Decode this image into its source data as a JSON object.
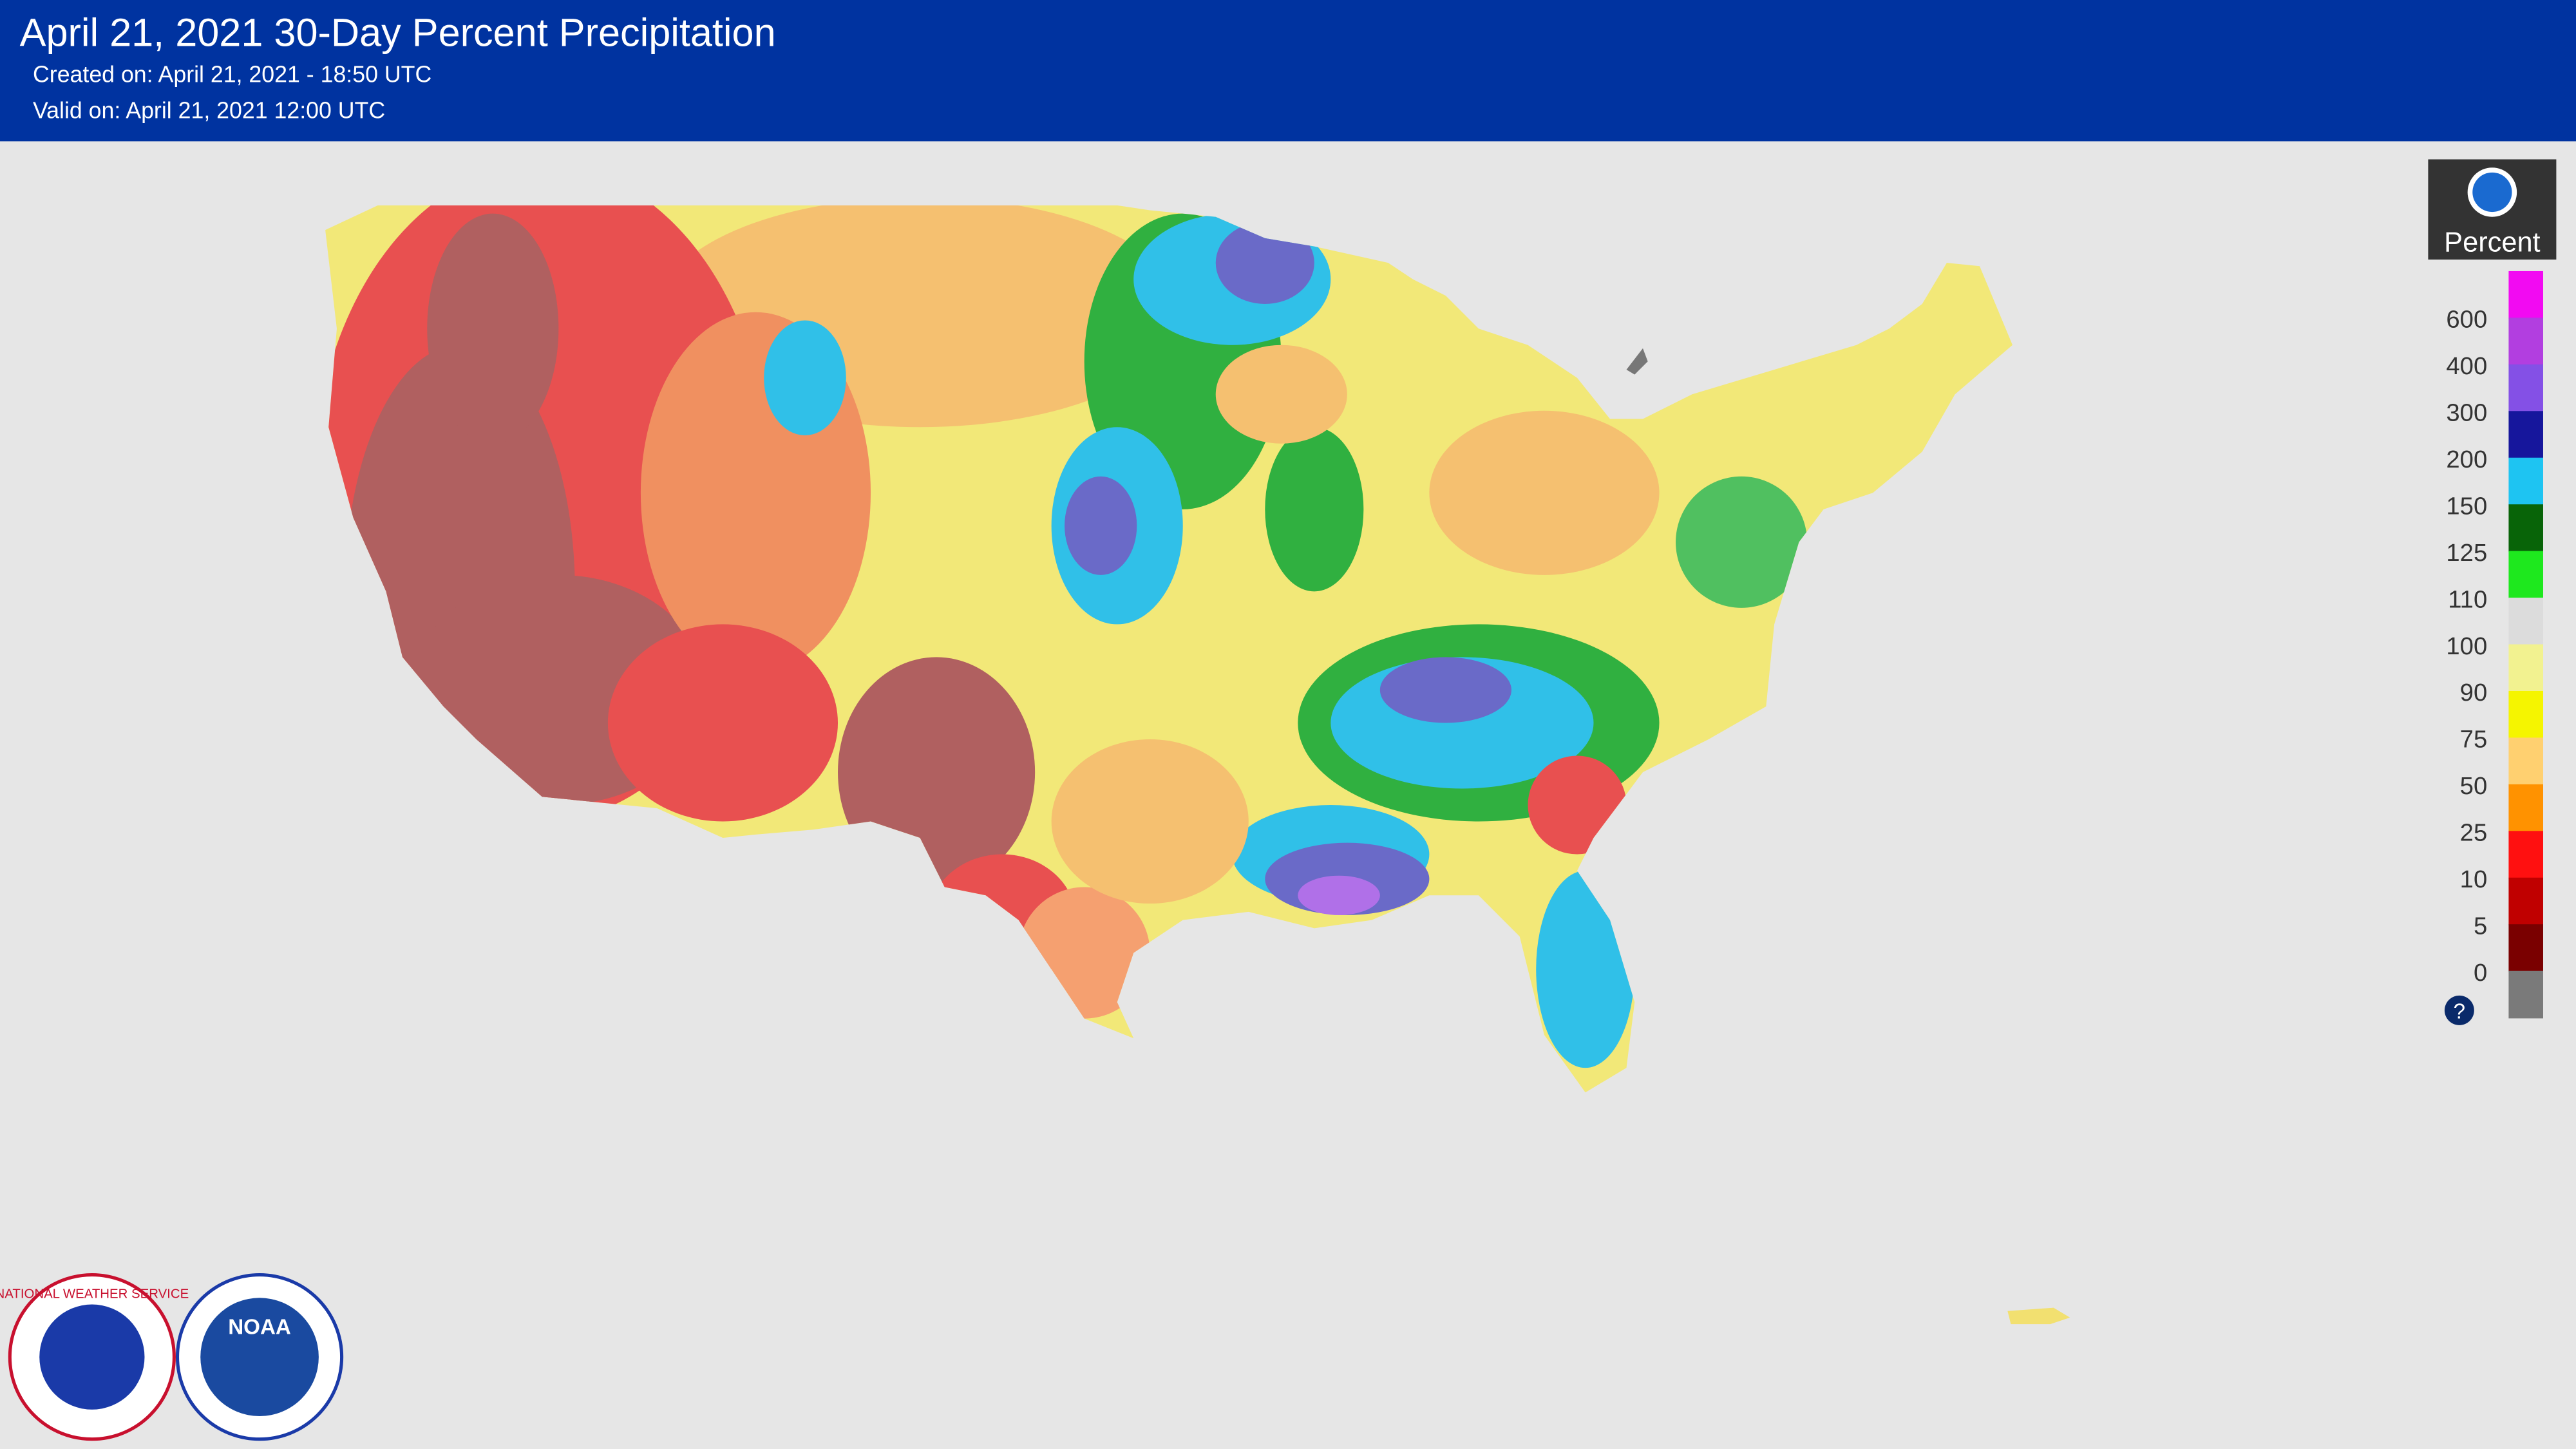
{
  "header": {
    "title": "April 21, 2021 30-Day Percent Precipitation",
    "created": "Created on: April 21, 2021 - 18:50 UTC",
    "valid": "Valid on: April 21, 2021 12:00 UTC"
  },
  "legend": {
    "title": "Percent",
    "labels": [
      "600",
      "400",
      "300",
      "200",
      "150",
      "125",
      "110",
      "100",
      "90",
      "75",
      "50",
      "25",
      "10",
      "5",
      "0"
    ],
    "colors": [
      "#f20af2",
      "#b23ee0",
      "#8450e6",
      "#16169c",
      "#1ec4f2",
      "#086408",
      "#1ee81e",
      "#dcdcdc",
      "#f2f290",
      "#f5f500",
      "#ffd070",
      "#ff9200",
      "#ff1010",
      "#c00000",
      "#7a0000",
      "#7a7a7a"
    ]
  },
  "logos": {
    "nws": "NATIONAL WEATHER SERVICE",
    "noaa": "NOAA"
  }
}
